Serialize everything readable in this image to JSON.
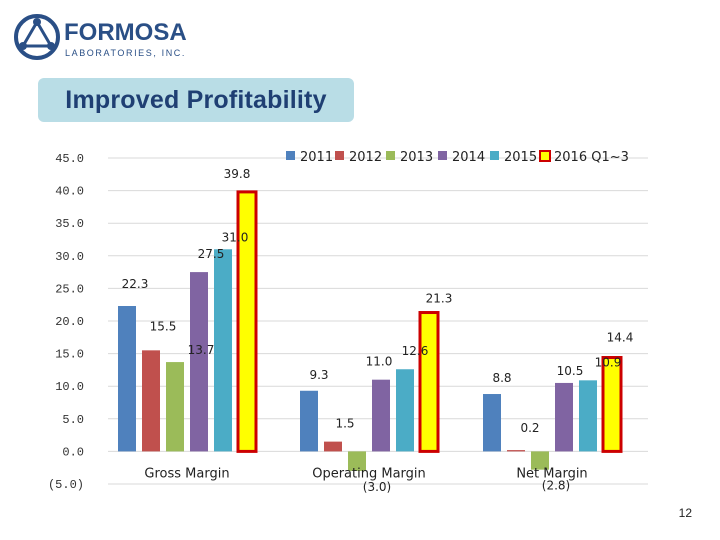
{
  "logo": {
    "name_text": "FORMOSA",
    "sub_text": "LABORATORIES, INC."
  },
  "title": "Improved Profitability",
  "page_number": "12",
  "colors": {
    "2011": "#4f81bd",
    "2012": "#c0504d",
    "2013": "#9bbb59",
    "2014": "#8064a2",
    "2015": "#4bacc6",
    "2016 Q1~3": "#ed1c24",
    "highlight_border": "#cc0000",
    "highlight_fill": "#ffff00",
    "title_bg": "#b9dde6",
    "title_text": "#1f3f73",
    "logo": "#2a4f86"
  },
  "chart_data": {
    "type": "bar",
    "categories": [
      "Gross Margin",
      "Operating Margin",
      "Net Margin"
    ],
    "series": [
      {
        "name": "2011",
        "values": [
          22.3,
          9.3,
          8.8
        ],
        "labels": [
          "22.3",
          "9.3",
          "8.8"
        ]
      },
      {
        "name": "2012",
        "values": [
          15.5,
          1.5,
          0.2
        ],
        "labels": [
          "15.5",
          "1.5",
          "0.2"
        ]
      },
      {
        "name": "2013",
        "values": [
          13.7,
          -3.0,
          -2.8
        ],
        "labels": [
          "13.7",
          "(3.0)",
          "(2.8)"
        ]
      },
      {
        "name": "2014",
        "values": [
          27.5,
          11.0,
          10.5
        ],
        "labels": [
          "27.5",
          "11.0",
          "10.5"
        ]
      },
      {
        "name": "2015",
        "values": [
          31.0,
          12.6,
          10.9
        ],
        "labels": [
          "31.0",
          "12.6",
          "10.9"
        ]
      },
      {
        "name": "2016 Q1~3",
        "values": [
          39.8,
          21.3,
          14.4
        ],
        "labels": [
          "39.8",
          "21.3",
          "14.4"
        ],
        "highlighted": true
      }
    ],
    "ylim": [
      -5,
      45
    ],
    "yticks": [
      45,
      40,
      35,
      30,
      25,
      20,
      15,
      10,
      5,
      0,
      -5
    ],
    "ytick_labels": [
      "45.0",
      "40.0",
      "35.0",
      "30.0",
      "25.0",
      "20.0",
      "15.0",
      "10.0",
      "5.0",
      "0.0",
      "(5.0)"
    ],
    "grid": true,
    "legend_position": "top-right"
  }
}
